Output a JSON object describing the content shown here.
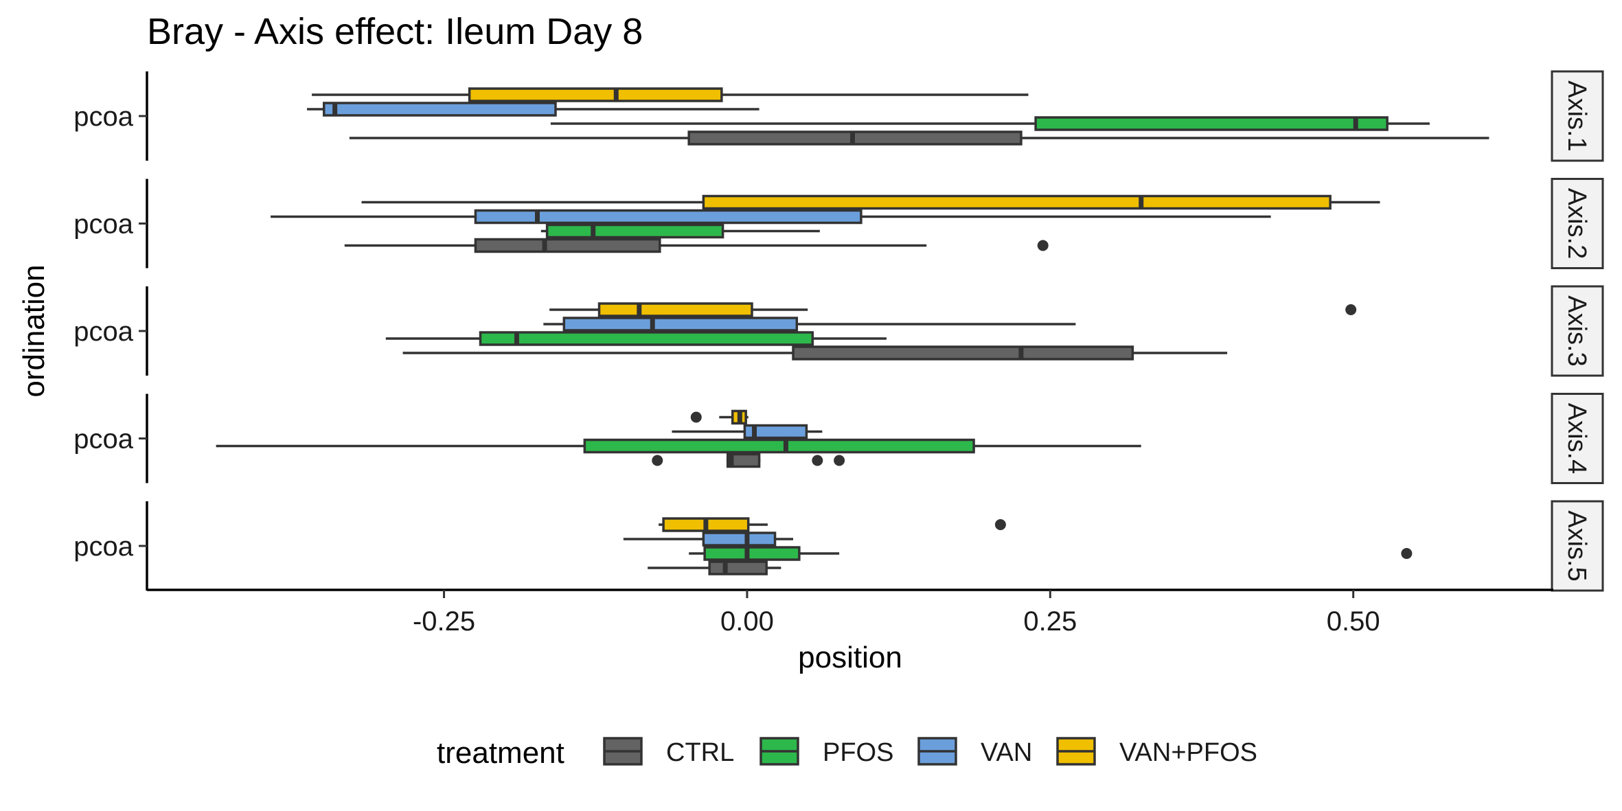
{
  "chart_data": {
    "type": "boxplot",
    "orientation": "horizontal",
    "title": "Bray - Axis effect: Ileum Day 8",
    "xlabel": "position",
    "ylabel": "ordination",
    "xlim": [
      -0.495,
      0.665
    ],
    "x_ticks": [
      -0.25,
      0.0,
      0.25,
      0.5
    ],
    "x_tick_labels": [
      "-0.25",
      "0.00",
      "0.25",
      "0.50"
    ],
    "grid": false,
    "legend": {
      "title": "treatment",
      "position": "bottom",
      "entries": [
        {
          "name": "CTRL",
          "color": "#636363"
        },
        {
          "name": "PFOS",
          "color": "#2db84b"
        },
        {
          "name": "VAN",
          "color": "#6b9fdc"
        },
        {
          "name": "VAN+PFOS",
          "color": "#f0c000"
        }
      ]
    },
    "panels": [
      {
        "strip": "Axis.1",
        "category": "pcoa",
        "series": [
          {
            "name": "VAN+PFOS",
            "whisker_low": -0.359,
            "q1": -0.229,
            "median": -0.108,
            "q3": -0.021,
            "whisker_high": 0.232,
            "outliers": []
          },
          {
            "name": "VAN",
            "whisker_low": -0.363,
            "q1": -0.349,
            "median": -0.34,
            "q3": -0.158,
            "whisker_high": 0.01,
            "outliers": []
          },
          {
            "name": "PFOS",
            "whisker_low": -0.162,
            "q1": 0.238,
            "median": 0.502,
            "q3": 0.528,
            "whisker_high": 0.563,
            "outliers": []
          },
          {
            "name": "CTRL",
            "whisker_low": -0.328,
            "q1": -0.048,
            "median": 0.087,
            "q3": 0.226,
            "whisker_high": 0.612,
            "outliers": []
          }
        ]
      },
      {
        "strip": "Axis.2",
        "category": "pcoa",
        "series": [
          {
            "name": "VAN+PFOS",
            "whisker_low": -0.318,
            "q1": -0.036,
            "median": 0.325,
            "q3": 0.481,
            "whisker_high": 0.522,
            "outliers": []
          },
          {
            "name": "VAN",
            "whisker_low": -0.393,
            "q1": -0.224,
            "median": -0.173,
            "q3": 0.094,
            "whisker_high": 0.432,
            "outliers": []
          },
          {
            "name": "PFOS",
            "whisker_low": -0.17,
            "q1": -0.165,
            "median": -0.127,
            "q3": -0.02,
            "whisker_high": 0.06,
            "outliers": []
          },
          {
            "name": "CTRL",
            "whisker_low": -0.332,
            "q1": -0.224,
            "median": -0.167,
            "q3": -0.072,
            "whisker_high": 0.148,
            "outliers": [
              0.244
            ]
          }
        ]
      },
      {
        "strip": "Axis.3",
        "category": "pcoa",
        "series": [
          {
            "name": "VAN+PFOS",
            "whisker_low": -0.163,
            "q1": -0.122,
            "median": -0.089,
            "q3": 0.004,
            "whisker_high": 0.05,
            "outliers": [
              0.498
            ]
          },
          {
            "name": "VAN",
            "whisker_low": -0.168,
            "q1": -0.151,
            "median": -0.078,
            "q3": 0.041,
            "whisker_high": 0.271,
            "outliers": []
          },
          {
            "name": "PFOS",
            "whisker_low": -0.298,
            "q1": -0.22,
            "median": -0.19,
            "q3": 0.054,
            "whisker_high": 0.115,
            "outliers": []
          },
          {
            "name": "CTRL",
            "whisker_low": -0.284,
            "q1": 0.038,
            "median": 0.226,
            "q3": 0.318,
            "whisker_high": 0.396,
            "outliers": []
          }
        ]
      },
      {
        "strip": "Axis.4",
        "category": "pcoa",
        "series": [
          {
            "name": "VAN+PFOS",
            "whisker_low": -0.023,
            "q1": -0.012,
            "median": -0.006,
            "q3": -0.001,
            "whisker_high": 0.001,
            "outliers": [
              -0.042
            ]
          },
          {
            "name": "VAN",
            "whisker_low": -0.062,
            "q1": -0.002,
            "median": 0.006,
            "q3": 0.049,
            "whisker_high": 0.062,
            "outliers": []
          },
          {
            "name": "PFOS",
            "whisker_low": -0.438,
            "q1": -0.134,
            "median": 0.032,
            "q3": 0.187,
            "whisker_high": 0.325,
            "outliers": []
          },
          {
            "name": "CTRL",
            "whisker_low": -0.017,
            "q1": -0.016,
            "median": -0.013,
            "q3": 0.01,
            "whisker_high": 0.011,
            "outliers": [
              -0.074,
              0.058,
              0.076
            ]
          }
        ]
      },
      {
        "strip": "Axis.5",
        "category": "pcoa",
        "series": [
          {
            "name": "VAN+PFOS",
            "whisker_low": -0.073,
            "q1": -0.069,
            "median": -0.034,
            "q3": 0.001,
            "whisker_high": 0.017,
            "outliers": [
              0.209
            ]
          },
          {
            "name": "VAN",
            "whisker_low": -0.102,
            "q1": -0.036,
            "median": 0.0,
            "q3": 0.023,
            "whisker_high": 0.038,
            "outliers": []
          },
          {
            "name": "PFOS",
            "whisker_low": -0.048,
            "q1": -0.035,
            "median": 0.0,
            "q3": 0.043,
            "whisker_high": 0.076,
            "outliers": [
              0.544
            ]
          },
          {
            "name": "CTRL",
            "whisker_low": -0.082,
            "q1": -0.031,
            "median": -0.018,
            "q3": 0.016,
            "whisker_high": 0.028,
            "outliers": []
          }
        ]
      }
    ]
  }
}
